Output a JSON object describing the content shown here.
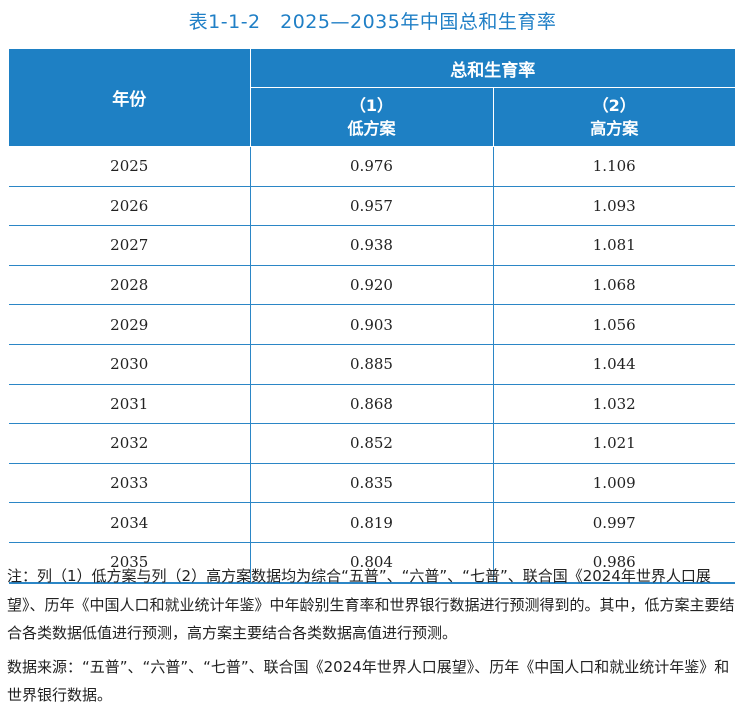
{
  "title": "表1-1-2　2025—2035年中国总和生育率",
  "table": {
    "year_header": "年份",
    "group_header": "总和生育率",
    "columns": [
      {
        "number": "（1）",
        "label": "低方案"
      },
      {
        "number": "（2）",
        "label": "高方案"
      }
    ],
    "rows": [
      {
        "year": "2025",
        "low": "0.976",
        "high": "1.106"
      },
      {
        "year": "2026",
        "low": "0.957",
        "high": "1.093"
      },
      {
        "year": "2027",
        "low": "0.938",
        "high": "1.081"
      },
      {
        "year": "2028",
        "low": "0.920",
        "high": "1.068"
      },
      {
        "year": "2029",
        "low": "0.903",
        "high": "1.056"
      },
      {
        "year": "2030",
        "low": "0.885",
        "high": "1.044"
      },
      {
        "year": "2031",
        "low": "0.868",
        "high": "1.032"
      },
      {
        "year": "2032",
        "low": "0.852",
        "high": "1.021"
      },
      {
        "year": "2033",
        "low": "0.835",
        "high": "1.009"
      },
      {
        "year": "2034",
        "low": "0.819",
        "high": "0.997"
      },
      {
        "year": "2035",
        "low": "0.804",
        "high": "0.986"
      }
    ]
  },
  "note": "注：列（1）低方案与列（2）高方案数据均为综合“五普”、“六普”、“七普”、联合国《2024年世界人口展望》、历年《中国人口和就业统计年鉴》中年龄别生育率和世界银行数据进行预测得到的。其中，低方案主要结合各类数据低值进行预测，高方案主要结合各类数据高值进行预测。",
  "source": "数据来源：“五普”、“六普”、“七普”、联合国《2024年世界人口展望》、历年《中国人口和就业统计年鉴》和世界银行数据。",
  "colors": {
    "header_bg": "#1e80c4",
    "title": "#1f7fc6",
    "rule": "#2b86c6"
  }
}
